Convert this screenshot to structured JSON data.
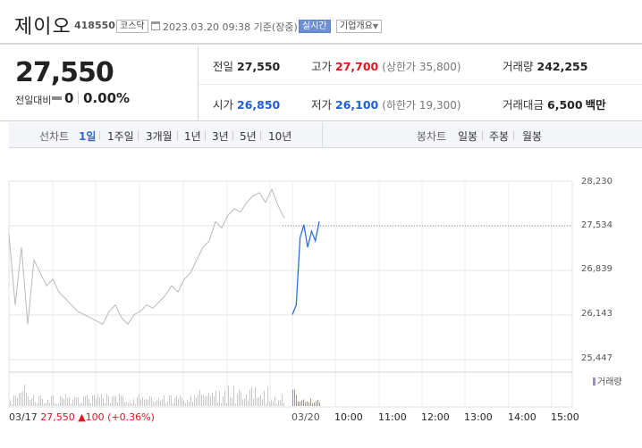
{
  "header": {
    "company_name": "제이오",
    "code": "418550",
    "market": "코스닥",
    "as_of": "2023.03.20 09:38 기준(장중)",
    "realtime_label": "실시간",
    "overview_label": "기업개요",
    "calendar_icon": "calendar-icon"
  },
  "summary": {
    "price": "27,550",
    "change_label": "전일대비",
    "change_value": "0",
    "change_rate": "0.00%",
    "prev_close_label": "전일",
    "prev_close": "27,550",
    "high_label": "고가",
    "high": "27,700",
    "upper_limit": "(상한가 35,800)",
    "volume_label": "거래량",
    "volume": "242,255",
    "open_label": "시가",
    "open": "26,850",
    "low_label": "저가",
    "low": "26,100",
    "lower_limit": "(하한가 19,300)",
    "amount_label": "거래대금",
    "amount": "6,500",
    "amount_unit": "백만",
    "colors": {
      "up": "#e0151f",
      "down": "#1f5ed6",
      "neutral": "#222222"
    }
  },
  "line_tabs": {
    "title": "선차트",
    "items": [
      "1일",
      "1주일",
      "3개월",
      "1년",
      "3년",
      "5년",
      "10년"
    ],
    "active": "1일"
  },
  "candle_tabs": {
    "title": "봉차트",
    "items": [
      "일봉",
      "주봉",
      "월봉"
    ]
  },
  "chart_data": {
    "type": "line",
    "y_ticks": [
      "28,230",
      "27,534",
      "26,839",
      "26,143",
      "25,447"
    ],
    "ylim": [
      25447,
      28230
    ],
    "x_ticks": [
      "03/20",
      "10:00",
      "11:00",
      "12:00",
      "13:00",
      "14:00",
      "15:00"
    ],
    "reference_line": 27534,
    "series": [
      {
        "values_prev_day": [
          27400,
          26300,
          27200,
          26000,
          27000,
          26800,
          26600,
          26700,
          26500,
          26400,
          26300,
          26200,
          26150,
          26100,
          26050,
          26000,
          26200,
          26300,
          26100,
          26000,
          26150,
          26200,
          26300,
          26250,
          26350,
          26450,
          26600,
          26500,
          26700,
          26800,
          27000,
          27200,
          27300,
          27600,
          27500,
          27700,
          27800,
          27750,
          27900,
          28000,
          28050,
          27900,
          28100,
          27850,
          27650
        ],
        "values_today": [
          26150,
          26300,
          27350,
          27550,
          27200,
          27450,
          27300,
          27600
        ]
      }
    ],
    "volume_legend": "거래량",
    "colors": {
      "prev_day_line": "#b9b9b9",
      "today_line": "#2e6fe0",
      "reference": "#888888",
      "volume_today": "#9c8ad1",
      "volume_prev": "#c8c8c8"
    }
  },
  "footer": {
    "date": "03/17",
    "price": "27,550",
    "change": "▲100",
    "rate": "(+0.36%)"
  }
}
